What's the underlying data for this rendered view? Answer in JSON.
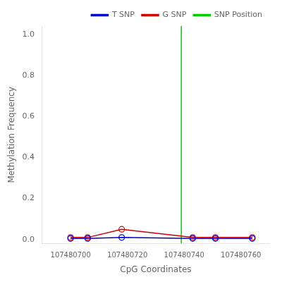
{
  "chart_data": {
    "type": "line",
    "xlabel": "CpG Coordinates",
    "ylabel": "Methylation Frequency",
    "x": [
      107480700,
      107480706,
      107480718,
      107480743,
      107480751,
      107480764
    ],
    "series": [
      {
        "name": "T SNP",
        "color": "#0000cc",
        "marker": "circle",
        "line_style": "solid",
        "values": [
          0.005,
          0.005,
          0.01,
          0.005,
          0.005,
          0.005
        ]
      },
      {
        "name": "G SNP",
        "color": "#cc0000",
        "marker": "circle",
        "line_style": "solid",
        "values": [
          0.01,
          0.01,
          0.05,
          0.01,
          0.01,
          0.01
        ]
      },
      {
        "name": "SNP Position",
        "type": "vline",
        "color": "#00cc00",
        "line_style": "solid",
        "x": 107480739
      }
    ],
    "xlim": [
      107480690,
      107480770
    ],
    "xticks": [
      107480700,
      107480720,
      107480740,
      107480760
    ],
    "ylim": [
      -0.02,
      1.04
    ],
    "yticks": [
      {
        "value": 0.0,
        "label": "0.0"
      },
      0.2,
      0.4,
      0.6,
      0.8,
      {
        "value": 1.0,
        "label": "1.0"
      }
    ],
    "grid": false,
    "legend": "upper right"
  }
}
